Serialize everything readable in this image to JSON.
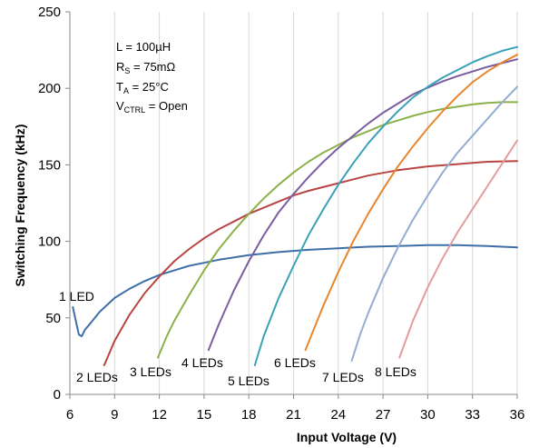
{
  "chart_data": {
    "type": "line",
    "title": "",
    "xlabel": "Input Voltage (V)",
    "ylabel": "Switching Frequency (kHz)",
    "xlim": [
      6,
      36
    ],
    "ylim": [
      0,
      250
    ],
    "xticks": [
      6,
      9,
      12,
      15,
      18,
      21,
      24,
      27,
      30,
      33,
      36
    ],
    "yticks": [
      0,
      50,
      100,
      150,
      200,
      250
    ],
    "grid": "vertical",
    "annotation": {
      "l": "L = 100µH",
      "rs_main": "R",
      "rs_sub": "S",
      "rs_rest": " = 75mΩ",
      "ta_main": "T",
      "ta_sub": "A",
      "ta_rest": " = 25°C",
      "vctrl_main": "V",
      "vctrl_sub": "CTRL",
      "vctrl_rest": " = Open"
    },
    "series": [
      {
        "name": "1 LED",
        "color": "#3e6ea8",
        "x": [
          6.2,
          6.4,
          6.6,
          6.8,
          7,
          7.5,
          8,
          9,
          10,
          11,
          12,
          13,
          14,
          15,
          16,
          18,
          20,
          22,
          24,
          26,
          28,
          30,
          32,
          34,
          36
        ],
        "y": [
          57,
          48,
          39,
          38,
          42,
          48,
          54,
          63,
          69,
          74,
          78,
          81,
          84,
          86,
          88,
          91,
          93,
          94.5,
          95.5,
          96.5,
          97,
          97.5,
          97.5,
          97,
          96
        ]
      },
      {
        "name": "2 LEDs",
        "color": "#b84542",
        "x": [
          8.3,
          9,
          10,
          11,
          12,
          13,
          14,
          15,
          16,
          17,
          18,
          19,
          20,
          21,
          22,
          24,
          26,
          28,
          30,
          32,
          34,
          36
        ],
        "y": [
          19,
          35,
          52,
          66,
          77,
          87,
          95,
          102,
          108,
          113,
          118,
          122,
          126,
          130,
          133,
          138,
          143,
          146.5,
          149,
          150.5,
          152,
          152.5
        ]
      },
      {
        "name": "3 LEDs",
        "color": "#8cb04a",
        "x": [
          11.9,
          12.5,
          13,
          14,
          15,
          16,
          17,
          18,
          19,
          20,
          21,
          22,
          23,
          24,
          25,
          26,
          27,
          28,
          29,
          30,
          31,
          32,
          33,
          34,
          35,
          36
        ],
        "y": [
          24,
          38,
          48,
          65,
          81,
          95,
          107,
          118,
          128,
          137,
          145,
          152,
          158,
          163,
          168,
          172,
          176,
          179,
          182,
          184.5,
          186.5,
          188,
          189.5,
          190.5,
          191,
          191
        ]
      },
      {
        "name": "4 LEDs",
        "color": "#7a5ea0",
        "x": [
          15.3,
          16,
          17,
          18,
          19,
          20,
          21,
          22,
          23,
          24,
          25,
          26,
          27,
          28,
          29,
          30,
          31,
          32,
          33,
          34,
          35,
          36
        ],
        "y": [
          29,
          46,
          68,
          87,
          104,
          119,
          131,
          142,
          152,
          161,
          169,
          177,
          184,
          190,
          196,
          200.5,
          204.5,
          208,
          211,
          214,
          216.5,
          219
        ]
      },
      {
        "name": "5 LEDs",
        "color": "#3ba1b6",
        "x": [
          18.4,
          19,
          20,
          21,
          22,
          23,
          24,
          25,
          26,
          27,
          28,
          29,
          30,
          31,
          32,
          33,
          34,
          35,
          36
        ],
        "y": [
          19,
          38,
          63,
          84,
          104,
          121,
          137,
          151,
          164,
          175,
          185,
          194,
          201,
          207,
          212,
          217,
          221,
          224.5,
          227
        ]
      },
      {
        "name": "6 LEDs",
        "color": "#e8862e",
        "x": [
          21.8,
          22.5,
          23,
          24,
          25,
          26,
          27,
          28,
          29,
          30,
          31,
          32,
          33,
          34,
          35,
          36
        ],
        "y": [
          29,
          46,
          58,
          80,
          100,
          118,
          134,
          149,
          162,
          174,
          185,
          195,
          204,
          211,
          217,
          222
        ]
      },
      {
        "name": "7 LEDs",
        "color": "#93add2",
        "x": [
          24.9,
          25.5,
          26,
          27,
          28,
          29,
          30,
          31,
          32,
          33,
          34,
          35,
          36
        ],
        "y": [
          22,
          40,
          53,
          76,
          96,
          114,
          130,
          145,
          158,
          169,
          180,
          191,
          201
        ]
      },
      {
        "name": "8 LEDs",
        "color": "#e69b9b",
        "x": [
          28.1,
          29,
          30,
          31,
          32,
          33,
          34,
          35,
          36
        ],
        "y": [
          24,
          48,
          70,
          89,
          106,
          121,
          136,
          151,
          166
        ]
      }
    ],
    "series_labels": [
      "1 LED",
      "2 LEDs",
      "3 LEDs",
      "4 LEDs",
      "5 LEDs",
      "6 LEDs",
      "7 LEDs",
      "8 LEDs"
    ]
  }
}
